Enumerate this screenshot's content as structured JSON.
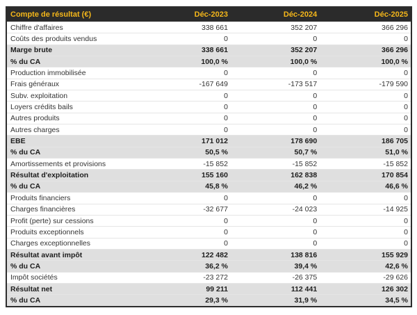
{
  "colors": {
    "header_bg": "#2b2b2b",
    "header_text": "#f5b71a",
    "band_bg": "#dfdfdf",
    "band_text": "#1d1d1d",
    "row_text": "#333333",
    "row_border": "#e5e5e5",
    "outer_border": "#2d2d2d",
    "page_bg": "#ffffff"
  },
  "chart_data": {
    "type": "table",
    "title": "Compte de résultat (€)",
    "columns": [
      "Déc-2023",
      "Déc-2024",
      "Déc-2025"
    ],
    "rows": [
      {
        "label": "Chiffre d'affaires",
        "values": [
          "338 661",
          "352 207",
          "366 296"
        ],
        "emphasis": false
      },
      {
        "label": "Coûts des produits vendus",
        "values": [
          "0",
          "0",
          "0"
        ],
        "emphasis": false
      },
      {
        "label": "Marge brute",
        "values": [
          "338 661",
          "352 207",
          "366 296"
        ],
        "emphasis": true
      },
      {
        "label": "% du CA",
        "values": [
          "100,0 %",
          "100,0 %",
          "100,0 %"
        ],
        "emphasis": true
      },
      {
        "label": "Production immobilisée",
        "values": [
          "0",
          "0",
          "0"
        ],
        "emphasis": false
      },
      {
        "label": "Frais généraux",
        "values": [
          "-167 649",
          "-173 517",
          "-179 590"
        ],
        "emphasis": false
      },
      {
        "label": "Subv. exploitation",
        "values": [
          "0",
          "0",
          "0"
        ],
        "emphasis": false
      },
      {
        "label": "Loyers crédits bails",
        "values": [
          "0",
          "0",
          "0"
        ],
        "emphasis": false
      },
      {
        "label": "Autres produits",
        "values": [
          "0",
          "0",
          "0"
        ],
        "emphasis": false
      },
      {
        "label": "Autres charges",
        "values": [
          "0",
          "0",
          "0"
        ],
        "emphasis": false
      },
      {
        "label": "EBE",
        "values": [
          "171 012",
          "178 690",
          "186 705"
        ],
        "emphasis": true
      },
      {
        "label": "% du CA",
        "values": [
          "50,5 %",
          "50,7 %",
          "51,0 %"
        ],
        "emphasis": true
      },
      {
        "label": "Amortissements et provisions",
        "values": [
          "-15 852",
          "-15 852",
          "-15 852"
        ],
        "emphasis": false
      },
      {
        "label": "Résultat d'exploitation",
        "values": [
          "155 160",
          "162 838",
          "170 854"
        ],
        "emphasis": true
      },
      {
        "label": "% du CA",
        "values": [
          "45,8 %",
          "46,2 %",
          "46,6 %"
        ],
        "emphasis": true
      },
      {
        "label": "Produits financiers",
        "values": [
          "0",
          "0",
          "0"
        ],
        "emphasis": false
      },
      {
        "label": "Charges financières",
        "values": [
          "-32 677",
          "-24 023",
          "-14 925"
        ],
        "emphasis": false
      },
      {
        "label": "Profit (perte) sur cessions",
        "values": [
          "0",
          "0",
          "0"
        ],
        "emphasis": false
      },
      {
        "label": "Produits exceptionnels",
        "values": [
          "0",
          "0",
          "0"
        ],
        "emphasis": false
      },
      {
        "label": "Charges exceptionnelles",
        "values": [
          "0",
          "0",
          "0"
        ],
        "emphasis": false
      },
      {
        "label": "Résultat avant impôt",
        "values": [
          "122 482",
          "138 816",
          "155 929"
        ],
        "emphasis": true
      },
      {
        "label": "% du CA",
        "values": [
          "36,2 %",
          "39,4 %",
          "42,6 %"
        ],
        "emphasis": true
      },
      {
        "label": "Impôt sociétés",
        "values": [
          "-23 272",
          "-26 375",
          "-29 626"
        ],
        "emphasis": false
      },
      {
        "label": "Résultat net",
        "values": [
          "99 211",
          "112 441",
          "126 302"
        ],
        "emphasis": true
      },
      {
        "label": "% du CA",
        "values": [
          "29,3 %",
          "31,9 %",
          "34,5 %"
        ],
        "emphasis": true
      }
    ]
  }
}
